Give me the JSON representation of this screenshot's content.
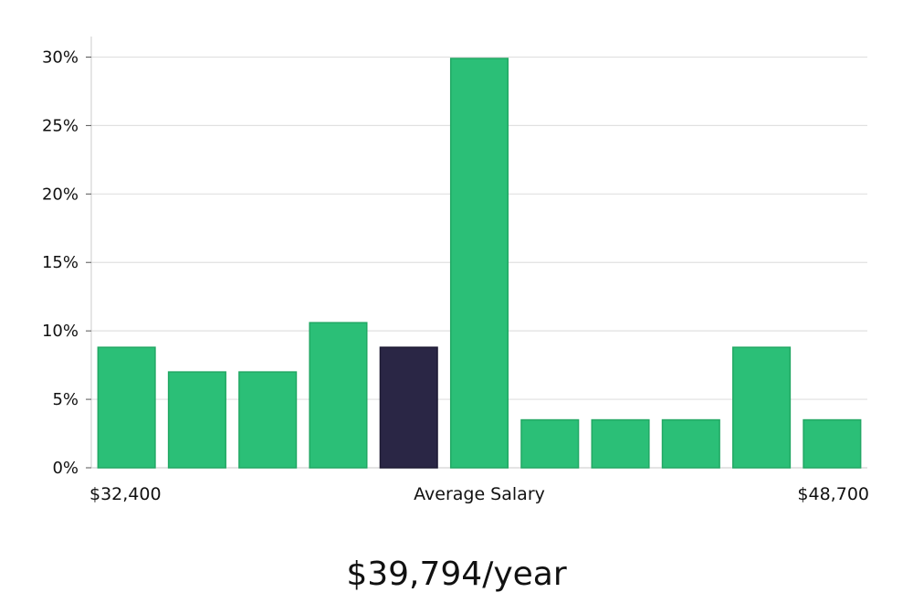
{
  "chart_data": {
    "type": "bar",
    "x_start_label": "$32,400",
    "x_center_label": "Average Salary",
    "x_end_label": "$48,700",
    "values": [
      8.8,
      7.0,
      7.0,
      10.6,
      8.8,
      29.9,
      3.5,
      3.5,
      3.5,
      8.8,
      3.5
    ],
    "highlight_index": 4,
    "y_ticks": [
      "0%",
      "5%",
      "10%",
      "15%",
      "20%",
      "25%",
      "30%"
    ],
    "ylim": [
      0,
      31.5
    ],
    "grid": true,
    "colors": {
      "bar": "#2bbf77",
      "bar_border": "#22a864",
      "highlight": "#2a2645",
      "grid": "#e1e1e1",
      "axis": "#d4d4d4"
    }
  },
  "summary": {
    "average_value": "$39,794/year"
  }
}
